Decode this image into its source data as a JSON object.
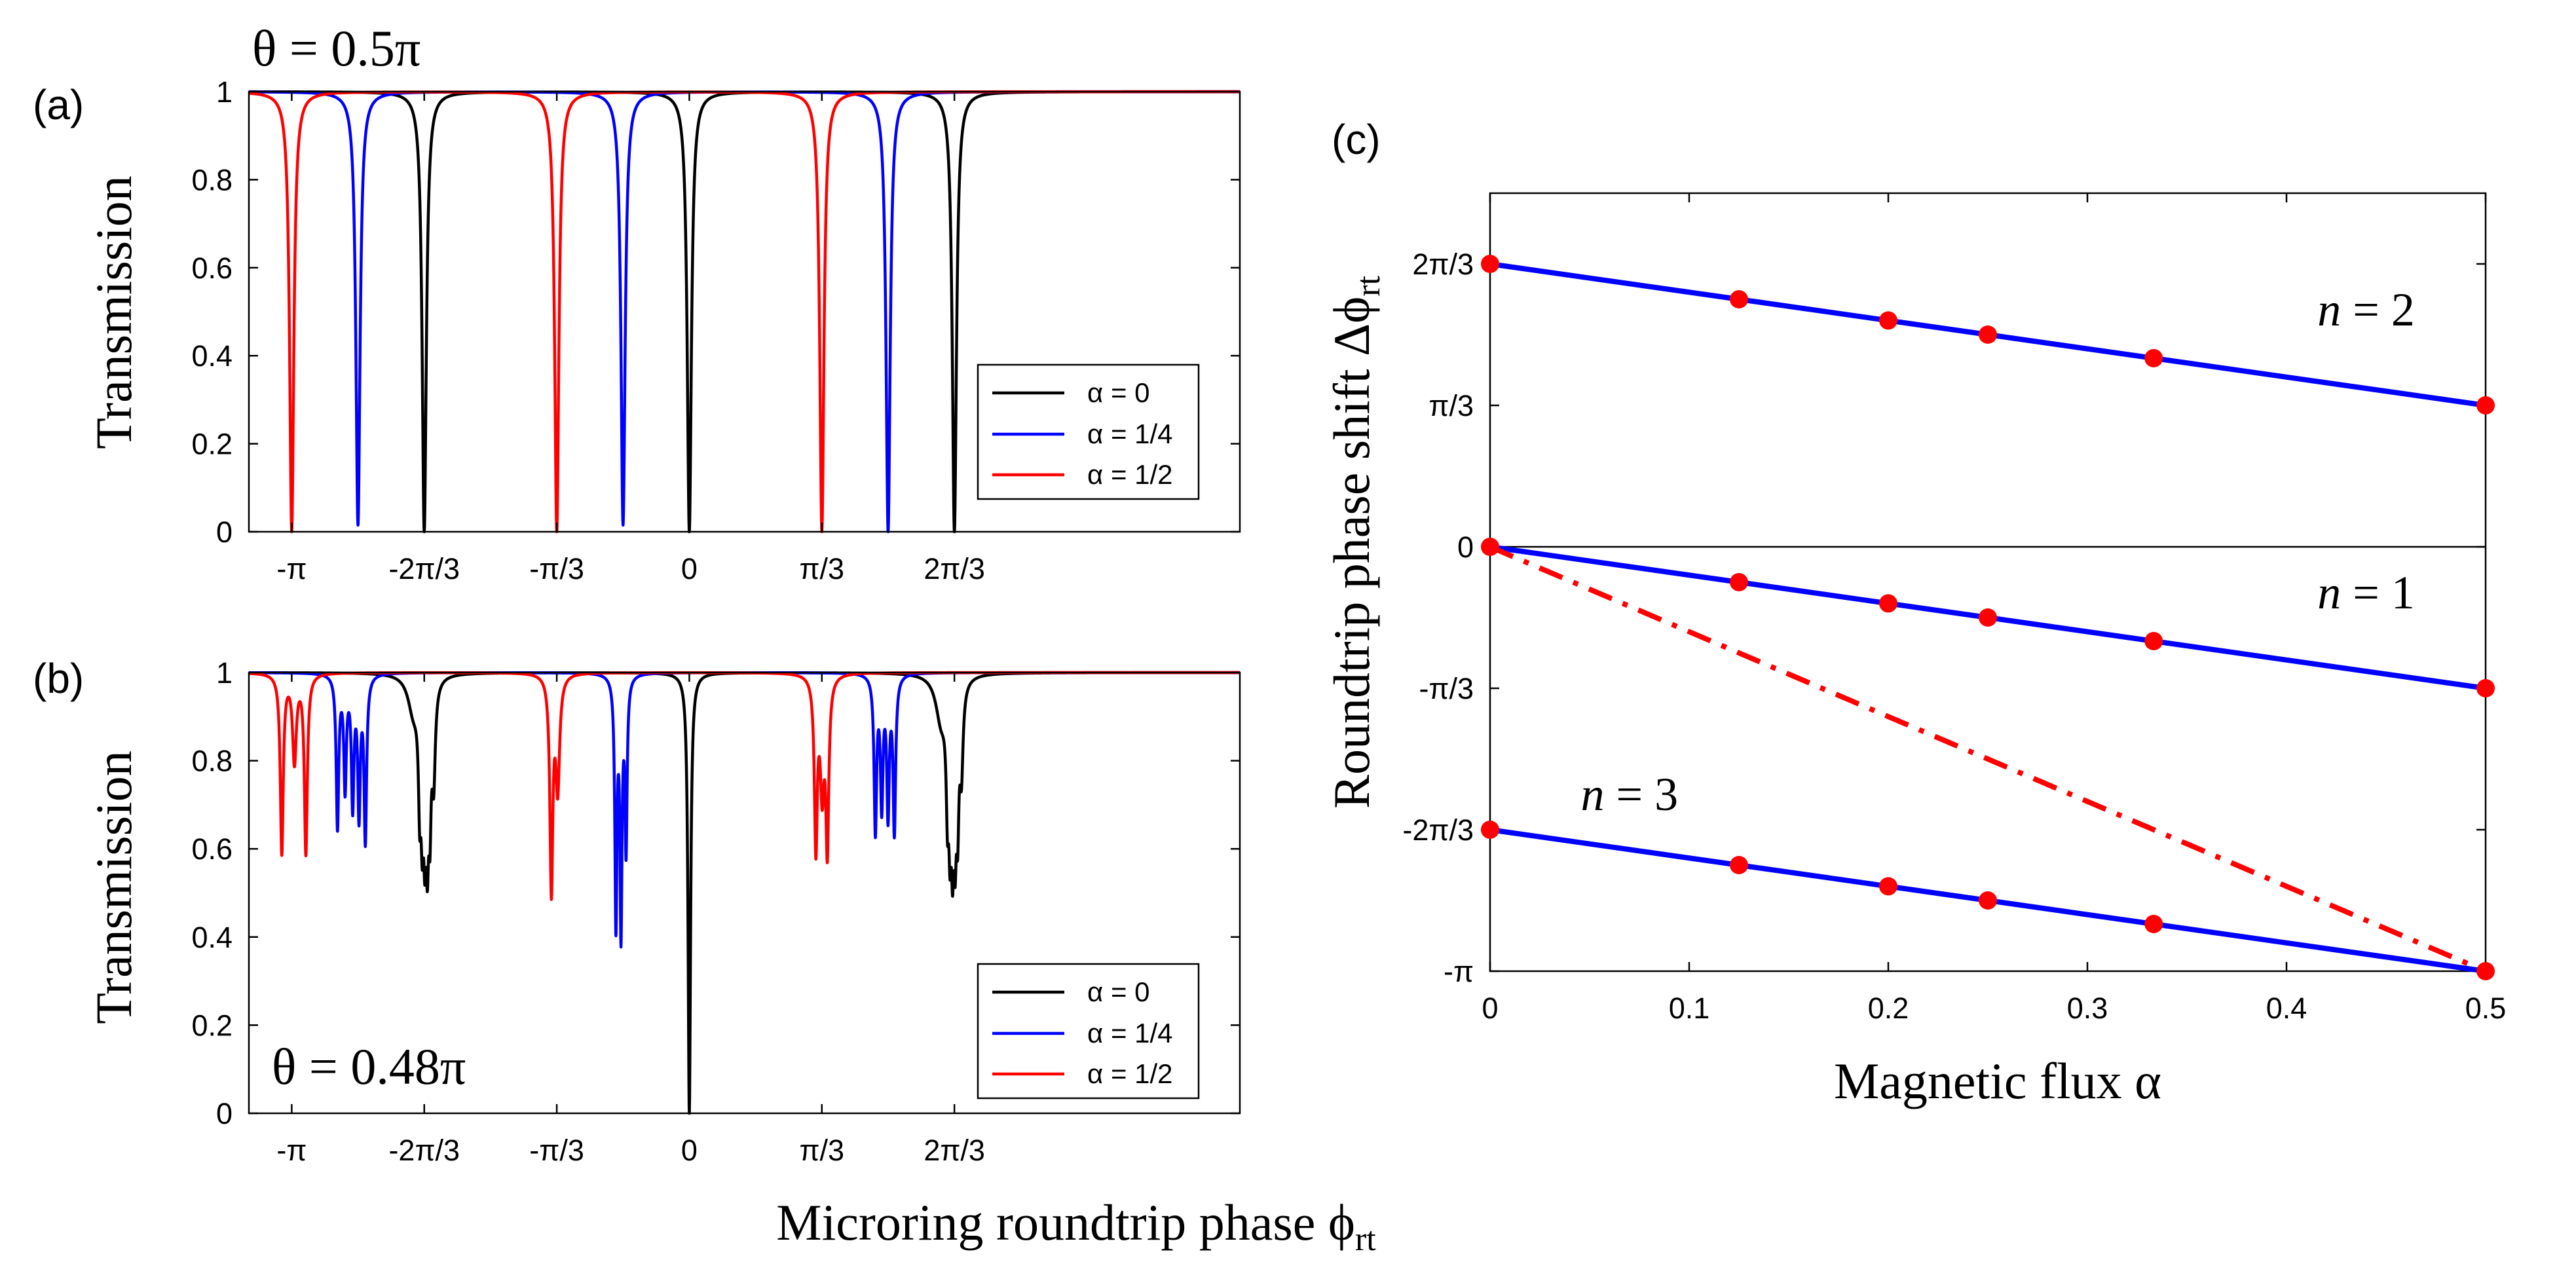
{
  "chart_data": [
    {
      "type": "line",
      "id": "a",
      "panel_label": "(a)",
      "annotation": "θ = 0.5π",
      "ylabel": "Transmission",
      "xlabel": "",
      "xlim": [
        -3.48,
        4.35
      ],
      "ylim": [
        0,
        1
      ],
      "x_ticks": [
        -3.1416,
        -2.0944,
        -1.0472,
        0,
        1.0472,
        2.0944
      ],
      "x_tick_labels": [
        "-π",
        "-2π/3",
        "-π/3",
        "0",
        "π/3",
        "2π/3"
      ],
      "y_ticks": [
        0,
        0.2,
        0.4,
        0.6,
        0.8,
        1
      ],
      "y_tick_labels": [
        "0",
        "0.2",
        "0.4",
        "0.6",
        "0.8",
        "1"
      ],
      "legend": {
        "position": "bottom-right",
        "entries": [
          "α = 0",
          "α = 1/4",
          "α = 1/2"
        ]
      },
      "series": [
        {
          "name": "α = 0",
          "color": "#000000",
          "dips": [
            {
              "x": -2.0944,
              "depth": 1
            },
            {
              "x": 0,
              "depth": 1
            },
            {
              "x": 2.0944,
              "depth": 1
            }
          ],
          "width": 0.02
        },
        {
          "name": "α = 1/4",
          "color": "#0000ff",
          "dips": [
            {
              "x": -2.618,
              "depth": 0.985
            },
            {
              "x": -0.5236,
              "depth": 0.985
            },
            {
              "x": 1.5708,
              "depth": 1
            }
          ],
          "width": 0.02
        },
        {
          "name": "α = 1/2",
          "color": "#ff0000",
          "dips": [
            {
              "x": -3.1416,
              "depth": 1
            },
            {
              "x": -1.0472,
              "depth": 1
            },
            {
              "x": 1.0472,
              "depth": 1
            }
          ],
          "width": 0.02
        }
      ]
    },
    {
      "type": "line",
      "id": "b",
      "panel_label": "(b)",
      "annotation": "θ = 0.48π",
      "ylabel": "Transmission",
      "xlabel": "Microring roundtrip phase ϕrt",
      "xlabel_main": "Microring roundtrip phase ϕ",
      "xlabel_sub": "rt",
      "xlim": [
        -3.48,
        4.35
      ],
      "ylim": [
        0,
        1
      ],
      "x_ticks": [
        -3.1416,
        -2.0944,
        -1.0472,
        0,
        1.0472,
        2.0944
      ],
      "x_tick_labels": [
        "-π",
        "-2π/3",
        "-π/3",
        "0",
        "π/3",
        "2π/3"
      ],
      "y_ticks": [
        0,
        0.2,
        0.4,
        0.6,
        0.8,
        1
      ],
      "y_tick_labels": [
        "0",
        "0.2",
        "0.4",
        "0.6",
        "0.8",
        "1"
      ],
      "legend": {
        "position": "bottom-right",
        "entries": [
          "α = 0",
          "α = 1/4",
          "α = 1/2"
        ]
      },
      "series": [
        {
          "name": "α = 0",
          "color": "#000000",
          "dips": [
            {
              "x": 0,
              "depth": 1,
              "w": 0.012
            },
            {
              "x": -2.18,
              "depth": 0.08,
              "w": 0.05
            },
            {
              "x": -2.13,
              "depth": 0.26,
              "w": 0.012
            },
            {
              "x": -2.11,
              "depth": 0.3,
              "w": 0.012
            },
            {
              "x": -2.09,
              "depth": 0.33,
              "w": 0.012
            },
            {
              "x": -2.07,
              "depth": 0.36,
              "w": 0.012
            },
            {
              "x": -2.05,
              "depth": 0.3,
              "w": 0.012
            },
            {
              "x": -2.02,
              "depth": 0.22,
              "w": 0.015
            },
            {
              "x": 1.99,
              "depth": 0.1,
              "w": 0.05
            },
            {
              "x": 2.04,
              "depth": 0.26,
              "w": 0.012
            },
            {
              "x": 2.06,
              "depth": 0.32,
              "w": 0.012
            },
            {
              "x": 2.08,
              "depth": 0.36,
              "w": 0.012
            },
            {
              "x": 2.1,
              "depth": 0.34,
              "w": 0.012
            },
            {
              "x": 2.12,
              "depth": 0.3,
              "w": 0.012
            },
            {
              "x": 2.15,
              "depth": 0.2,
              "w": 0.015
            }
          ]
        },
        {
          "name": "α = 1/4",
          "color": "#0000ff",
          "dips": [
            {
              "x": -2.78,
              "depth": 0.35,
              "w": 0.012
            },
            {
              "x": -2.72,
              "depth": 0.26,
              "w": 0.012
            },
            {
              "x": -2.66,
              "depth": 0.3,
              "w": 0.012
            },
            {
              "x": -2.61,
              "depth": 0.32,
              "w": 0.012
            },
            {
              "x": -2.56,
              "depth": 0.38,
              "w": 0.012
            },
            {
              "x": -0.58,
              "depth": 0.58,
              "w": 0.01
            },
            {
              "x": -0.54,
              "depth": 0.6,
              "w": 0.01
            },
            {
              "x": -0.5,
              "depth": 0.4,
              "w": 0.01
            },
            {
              "x": 1.47,
              "depth": 0.36,
              "w": 0.012
            },
            {
              "x": 1.52,
              "depth": 0.3,
              "w": 0.012
            },
            {
              "x": 1.57,
              "depth": 0.32,
              "w": 0.012
            },
            {
              "x": 1.62,
              "depth": 0.36,
              "w": 0.012
            }
          ]
        },
        {
          "name": "α = 1/2",
          "color": "#ff0000",
          "dips": [
            {
              "x": -3.22,
              "depth": 0.41,
              "w": 0.014
            },
            {
              "x": -3.12,
              "depth": 0.2,
              "w": 0.018
            },
            {
              "x": -3.03,
              "depth": 0.41,
              "w": 0.014
            },
            {
              "x": -1.09,
              "depth": 0.5,
              "w": 0.014
            },
            {
              "x": -1.04,
              "depth": 0.26,
              "w": 0.018
            },
            {
              "x": 1.0,
              "depth": 0.4,
              "w": 0.014
            },
            {
              "x": 1.05,
              "depth": 0.26,
              "w": 0.018
            },
            {
              "x": 1.09,
              "depth": 0.4,
              "w": 0.014
            }
          ]
        }
      ]
    },
    {
      "type": "line",
      "id": "c",
      "panel_label": "(c)",
      "xlabel": "Magnetic flux α",
      "ylabel": "Roundtrip phase shift Δϕrt",
      "ylabel_main": "Roundtrip phase shift Δϕ",
      "ylabel_sub": "rt",
      "xlim": [
        0,
        0.5
      ],
      "ylim": [
        -3.1416,
        2.618
      ],
      "x_ticks": [
        0,
        0.1,
        0.2,
        0.3,
        0.4,
        0.5
      ],
      "x_tick_labels": [
        "0",
        "0.1",
        "0.2",
        "0.3",
        "0.4",
        "0.5"
      ],
      "y_ticks": [
        -3.1416,
        -2.0944,
        -1.0472,
        0,
        1.0472,
        2.0944
      ],
      "y_tick_labels": [
        "-π",
        "-2π/3",
        "-π/3",
        "0",
        "π/3",
        "2π/3"
      ],
      "zero_line": true,
      "series": [
        {
          "name": "n = 2",
          "label": "n = 2",
          "label_position": "right",
          "color": "#0000ff",
          "x": [
            0,
            0.125,
            0.2,
            0.25,
            0.3333,
            0.5
          ],
          "y": [
            2.0944,
            1.8326,
            1.6755,
            1.5708,
            1.3963,
            1.0472
          ]
        },
        {
          "name": "n = 1",
          "label": "n = 1",
          "label_position": "right",
          "color": "#0000ff",
          "x": [
            0,
            0.125,
            0.2,
            0.25,
            0.3333,
            0.5
          ],
          "y": [
            0,
            -0.2618,
            -0.4189,
            -0.5236,
            -0.6981,
            -1.0472
          ]
        },
        {
          "name": "n = 3",
          "label": "n = 3",
          "label_position": "left",
          "color": "#0000ff",
          "x": [
            0,
            0.125,
            0.2,
            0.25,
            0.3333,
            0.5
          ],
          "y": [
            -2.0944,
            -2.3562,
            -2.5133,
            -2.618,
            -2.7925,
            -3.1416
          ]
        },
        {
          "name": "reference",
          "color": "#ff0000",
          "dash": true,
          "x": [
            0,
            0.5
          ],
          "y": [
            0,
            -3.1416
          ]
        }
      ],
      "marker_color": "#ff0000"
    }
  ]
}
